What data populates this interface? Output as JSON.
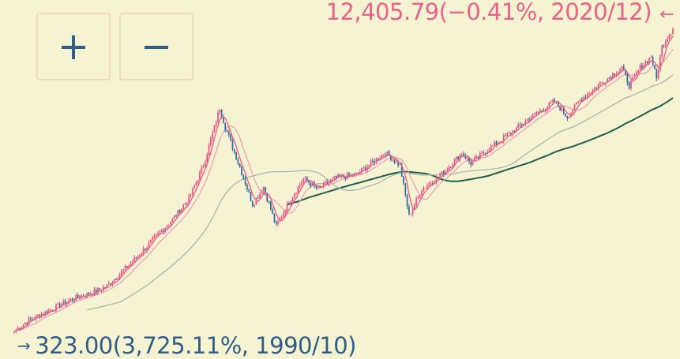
{
  "zoom": {
    "in_label": "+",
    "out_label": "−"
  },
  "labels": {
    "high": "12,405.79(−0.41%, 2020/12)",
    "low": "323.00(3,725.11%, 1990/10)",
    "high_arrow": "←",
    "low_arrow": "→"
  },
  "colors": {
    "background": "#f6f3d2",
    "candle_up": "#f04f84",
    "candle_down": "#2f6aa0",
    "ma_short": "#e8628a",
    "ma_mid": "#f19ab3",
    "ma_long": "#a8b8b0",
    "ma_longest": "#1f5e52",
    "high_text": "#e8628a",
    "low_text": "#2f5d86"
  },
  "chart_data": {
    "type": "candlestick",
    "x_start": "1990/10",
    "x_end": "2020/12",
    "y_scale": "log",
    "ylim": [
      300,
      13000
    ],
    "series": [
      {
        "values": [
          [
            "1990/10",
            323
          ],
          [
            "1991/06",
            370
          ],
          [
            "1992/06",
            420
          ],
          [
            "1993/06",
            480
          ],
          [
            "1994/06",
            520
          ],
          [
            "1995/01",
            560
          ],
          [
            "1996/01",
            720
          ],
          [
            "1997/01",
            950
          ],
          [
            "1998/01",
            1250
          ],
          [
            "1998/10",
            1600
          ],
          [
            "1999/06",
            2400
          ],
          [
            "2000/03",
            4800
          ],
          [
            "2000/06",
            3800
          ],
          [
            "2001/01",
            2500
          ],
          [
            "2001/09",
            1500
          ],
          [
            "2002/03",
            1850
          ],
          [
            "2002/10",
            1150
          ],
          [
            "2003/06",
            1600
          ],
          [
            "2004/01",
            2050
          ],
          [
            "2004/09",
            1800
          ],
          [
            "2005/06",
            2050
          ],
          [
            "2006/06",
            2150
          ],
          [
            "2007/10",
            2800
          ],
          [
            "2008/06",
            2400
          ],
          [
            "2008/11",
            1300
          ],
          [
            "2009/06",
            1800
          ],
          [
            "2010/06",
            2200
          ],
          [
            "2011/04",
            2800
          ],
          [
            "2011/09",
            2450
          ],
          [
            "2012/06",
            2900
          ],
          [
            "2013/06",
            3500
          ],
          [
            "2014/06",
            4300
          ],
          [
            "2015/07",
            5200
          ],
          [
            "2016/02",
            4300
          ],
          [
            "2016/09",
            5300
          ],
          [
            "2017/06",
            6200
          ],
          [
            "2018/08",
            7800
          ],
          [
            "2018/12",
            6300
          ],
          [
            "2019/06",
            7800
          ],
          [
            "2019/12",
            8900
          ],
          [
            "2020/03",
            6800
          ],
          [
            "2020/06",
            10000
          ],
          [
            "2020/09",
            11300
          ],
          [
            "2020/12",
            12405.79
          ]
        ]
      }
    ]
  }
}
